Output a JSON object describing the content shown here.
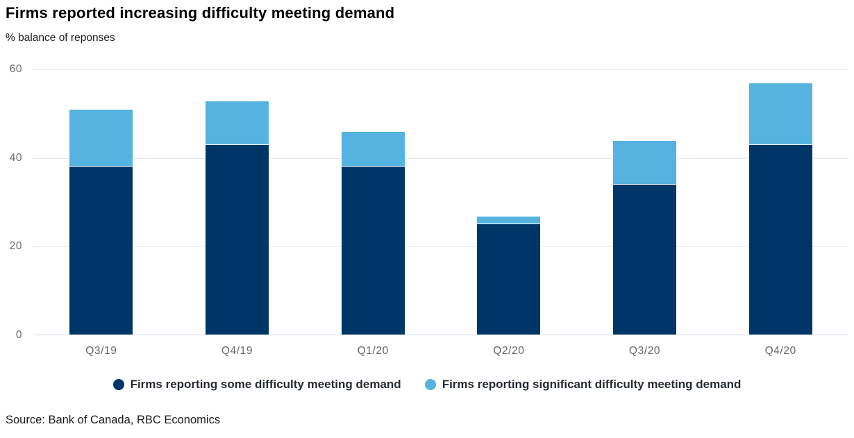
{
  "chart_data": {
    "type": "bar",
    "stacked": true,
    "title": "Firms reported increasing difficulty meeting demand",
    "subtitle": "% balance of reponses",
    "categories": [
      "Q3/19",
      "Q4/19",
      "Q1/20",
      "Q2/20",
      "Q3/20",
      "Q4/20"
    ],
    "series": [
      {
        "name": "Firms reporting some difficulty meeting demand",
        "color": "#003667",
        "values": [
          38,
          43,
          38,
          25,
          34,
          43
        ]
      },
      {
        "name": "Firms reporting significant difficulty meeting demand",
        "color": "#54B4DF",
        "values": [
          13,
          10,
          8,
          2,
          10,
          14
        ]
      }
    ],
    "xlabel": "",
    "ylabel": "% balance of reponses",
    "ylim": [
      0,
      60
    ],
    "yticks": [
      0,
      20,
      40,
      60
    ],
    "grid": true,
    "legend_position": "bottom",
    "gridline_color": "#e6e6e6",
    "axis_line_color": "#ccd6eb",
    "tick_label_color": "#666666"
  },
  "footer": {
    "source": "Source: Bank of Canada, RBC Economics"
  }
}
